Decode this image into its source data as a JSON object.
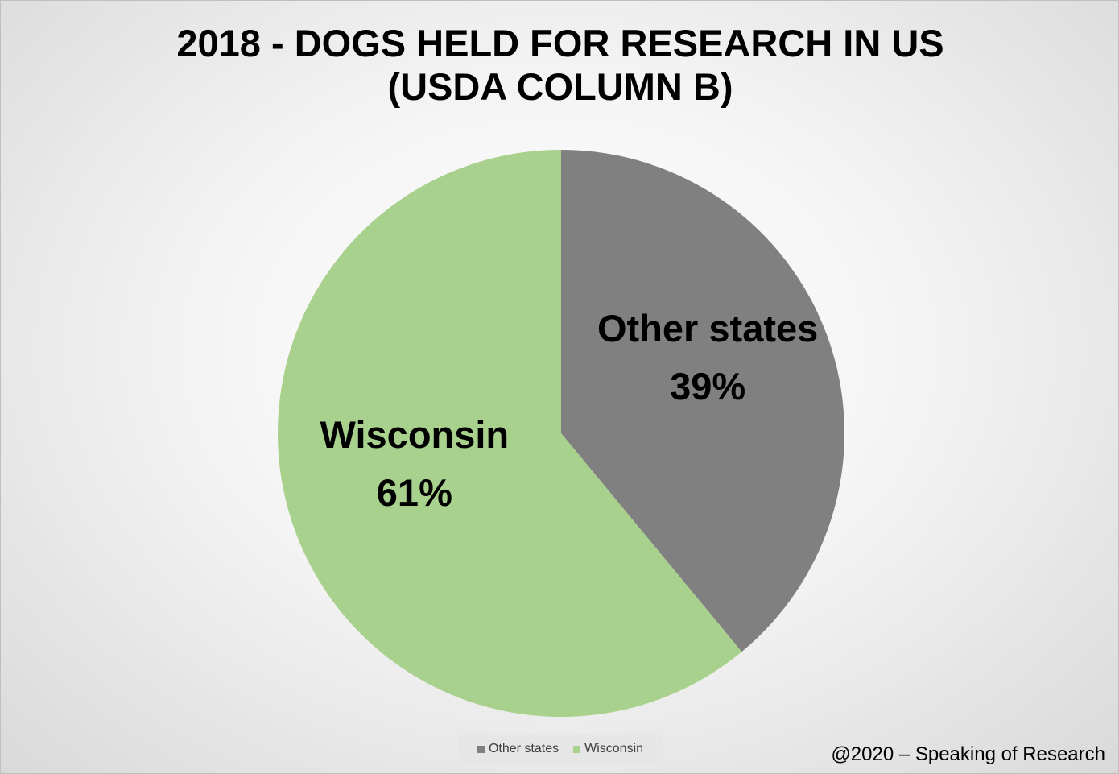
{
  "chart_data": {
    "type": "pie",
    "title": "2018 - DOGS HELD FOR RESEARCH IN US (USDA COLUMN B)",
    "categories": [
      "Other states",
      "Wisconsin"
    ],
    "values": [
      39,
      61
    ],
    "value_labels": [
      "39%",
      "61%"
    ],
    "colors": [
      "#808080",
      "#a9d18e"
    ],
    "legend": "bottom",
    "credit": "@2020 – Speaking of Research"
  }
}
